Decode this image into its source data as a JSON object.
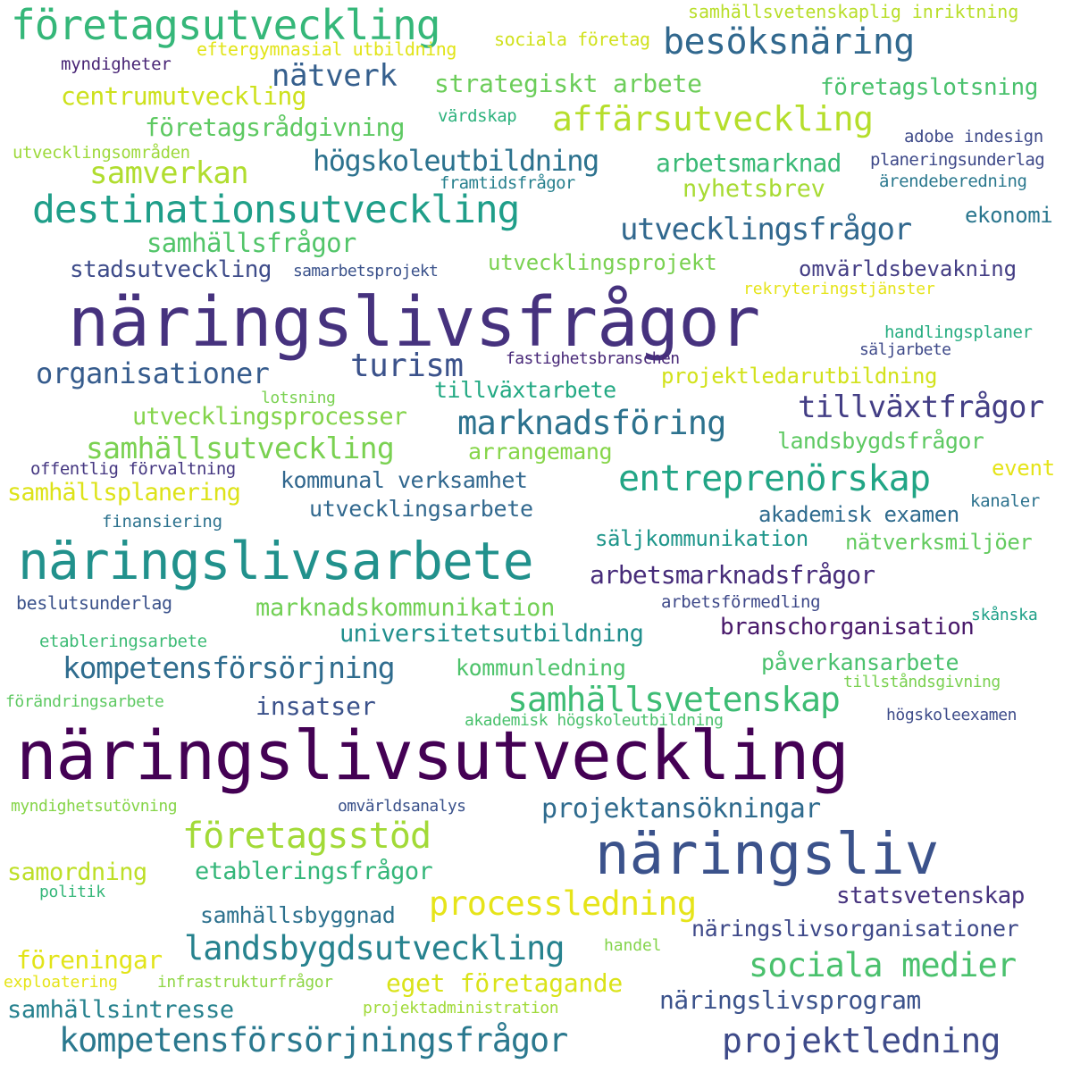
{
  "words": [
    {
      "text": "näringslivsutveckling",
      "color": "#440154"
    },
    {
      "text": "näringslivsfrågor",
      "color": "#46327e"
    },
    {
      "text": "näringslivsarbete",
      "color": "#21918c"
    },
    {
      "text": "näringsliv",
      "color": "#3b528b"
    },
    {
      "text": "destinationsutveckling",
      "color": "#1f9e89"
    },
    {
      "text": "företagsutveckling",
      "color": "#35b779"
    },
    {
      "text": "kompetensförsörjningsfrågor",
      "color": "#2a788e"
    },
    {
      "text": "besöksnäring",
      "color": "#31688e"
    },
    {
      "text": "affärsutveckling",
      "color": "#b5de2b"
    },
    {
      "text": "entreprenörskap",
      "color": "#21a585"
    },
    {
      "text": "samhällsvetenskap",
      "color": "#3dbc74"
    },
    {
      "text": "företagsstöd",
      "color": "#a2da37"
    },
    {
      "text": "landsbygdsutveckling",
      "color": "#26828e"
    },
    {
      "text": "processledning",
      "color": "#e6e419"
    },
    {
      "text": "sociala medier",
      "color": "#4ac16d"
    },
    {
      "text": "projektledning",
      "color": "#3e4a89"
    },
    {
      "text": "marknadsföring",
      "color": "#2c728e"
    },
    {
      "text": "kompetensförsörjning",
      "color": "#2f6c8e"
    },
    {
      "text": "samhällsutveckling",
      "color": "#7ad151"
    },
    {
      "text": "tillväxtfrågor",
      "color": "#433e85"
    },
    {
      "text": "utvecklingsfrågor",
      "color": "#31688e"
    },
    {
      "text": "högskoleutbildning",
      "color": "#2c728e"
    },
    {
      "text": "samverkan",
      "color": "#b0dd2f"
    },
    {
      "text": "turism",
      "color": "#3b528b"
    },
    {
      "text": "organisationer",
      "color": "#365c8d"
    },
    {
      "text": "nätverk",
      "color": "#355f8d"
    },
    {
      "text": "projektansökningar",
      "color": "#2f6b8e"
    },
    {
      "text": "företagsrådgivning",
      "color": "#5ec962"
    },
    {
      "text": "centrumutveckling",
      "color": "#cde11d"
    },
    {
      "text": "strategiskt arbete",
      "color": "#6ccd5a"
    },
    {
      "text": "företagslotsning",
      "color": "#4ac16d"
    },
    {
      "text": "arbetsmarknad",
      "color": "#3aba76"
    },
    {
      "text": "nyhetsbrev",
      "color": "#a8db34"
    },
    {
      "text": "samhällsfrågor",
      "color": "#52c569"
    },
    {
      "text": "stadsutveckling",
      "color": "#3e4c8a"
    },
    {
      "text": "utvecklingsprojekt",
      "color": "#7ad151"
    },
    {
      "text": "omvärldsbevakning",
      "color": "#433d84"
    },
    {
      "text": "ekonomi",
      "color": "#2a768e"
    },
    {
      "text": "tillväxtarbete",
      "color": "#23a983"
    },
    {
      "text": "projektledarutbildning",
      "color": "#d2e21b"
    },
    {
      "text": "utvecklingsprocesser",
      "color": "#84d44b"
    },
    {
      "text": "samhällsplanering",
      "color": "#dde318"
    },
    {
      "text": "kommunal verksamhet",
      "color": "#31678e"
    },
    {
      "text": "utvecklingsarbete",
      "color": "#31688e"
    },
    {
      "text": "arrangemang",
      "color": "#86d549"
    },
    {
      "text": "landsbygdsfrågor",
      "color": "#5ec962"
    },
    {
      "text": "event",
      "color": "#e5e419"
    },
    {
      "text": "akademisk examen",
      "color": "#2f6b8e"
    },
    {
      "text": "säljkommunikation",
      "color": "#1f968b"
    },
    {
      "text": "nätverksmiljöer",
      "color": "#63cb5f"
    },
    {
      "text": "arbetsmarknadsfrågor",
      "color": "#472c7a"
    },
    {
      "text": "marknadskommunikation",
      "color": "#73d056"
    },
    {
      "text": "universitetsutbildning",
      "color": "#218f8d"
    },
    {
      "text": "branschorganisation",
      "color": "#48186a"
    },
    {
      "text": "kommunledning",
      "color": "#4ec36b"
    },
    {
      "text": "påverkansarbete",
      "color": "#4ac16d"
    },
    {
      "text": "insatser",
      "color": "#3b528b"
    },
    {
      "text": "etableringsfrågor",
      "color": "#34b679"
    },
    {
      "text": "samordning",
      "color": "#bddf26"
    },
    {
      "text": "statsvetenskap",
      "color": "#46337e"
    },
    {
      "text": "samhällsbyggnad",
      "color": "#2d718e"
    },
    {
      "text": "näringslivsorganisationer",
      "color": "#3e4989"
    },
    {
      "text": "föreningar",
      "color": "#e2e418"
    },
    {
      "text": "eget företagande",
      "color": "#dae319"
    },
    {
      "text": "samhällsintresse",
      "color": "#26818e"
    },
    {
      "text": "näringslivsprogram",
      "color": "#3b528b"
    },
    {
      "text": "samhällsvetenskaplig inriktning",
      "color": "#b8de29"
    },
    {
      "text": "sociala företag",
      "color": "#d0e11c"
    },
    {
      "text": "eftergymnasial utbildning",
      "color": "#e1e418"
    },
    {
      "text": "myndigheter",
      "color": "#482475"
    },
    {
      "text": "värdskap",
      "color": "#2db27d"
    },
    {
      "text": "utvecklingsområden",
      "color": "#9dd93b"
    },
    {
      "text": "adobe indesign",
      "color": "#3e4a89"
    },
    {
      "text": "planeringsunderlag",
      "color": "#3e4989"
    },
    {
      "text": "framtidsfrågor",
      "color": "#27808e"
    },
    {
      "text": "ärendeberedning",
      "color": "#2a788e"
    },
    {
      "text": "samarbetsprojekt",
      "color": "#3b528b"
    },
    {
      "text": "rekryteringstjänster",
      "color": "#e5e419"
    },
    {
      "text": "handlingsplaner",
      "color": "#27ad81"
    },
    {
      "text": "säljarbete",
      "color": "#3e4989"
    },
    {
      "text": "fastighetsbranschen",
      "color": "#482878"
    },
    {
      "text": "lotsning",
      "color": "#7ad151"
    },
    {
      "text": "offentlig förvaltning",
      "color": "#453781"
    },
    {
      "text": "finansiering",
      "color": "#2c728e"
    },
    {
      "text": "kanaler",
      "color": "#2c728e"
    },
    {
      "text": "beslutsunderlag",
      "color": "#3b528b"
    },
    {
      "text": "arbetsförmedling",
      "color": "#3e4989"
    },
    {
      "text": "skånska",
      "color": "#1fa088"
    },
    {
      "text": "etableringsarbete",
      "color": "#3cbb75"
    },
    {
      "text": "tillståndsgivning",
      "color": "#7ad151"
    },
    {
      "text": "förändringsarbete",
      "color": "#5ec962"
    },
    {
      "text": "akademisk högskoleutbildning",
      "color": "#4ac16d"
    },
    {
      "text": "högskoleexamen",
      "color": "#3e4c8a"
    },
    {
      "text": "myndighetsutövning",
      "color": "#86d549"
    },
    {
      "text": "omvärldsanalys",
      "color": "#3b528b"
    },
    {
      "text": "politik",
      "color": "#35b779"
    },
    {
      "text": "handel",
      "color": "#84d44b"
    },
    {
      "text": "exploatering",
      "color": "#e5e419"
    },
    {
      "text": "infrastrukturfrågor",
      "color": "#8ed645"
    },
    {
      "text": "projektadministration",
      "color": "#a0da39"
    }
  ]
}
